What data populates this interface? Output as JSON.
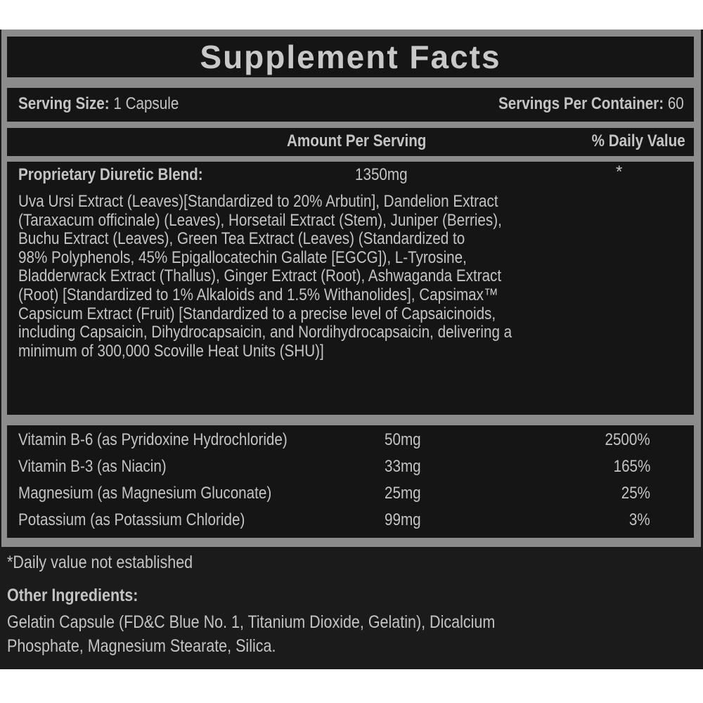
{
  "title": "Supplement Facts",
  "serving_size_label": "Serving Size:",
  "serving_size_value": "1 Capsule",
  "servings_per_container_label": "Servings Per Container:",
  "servings_per_container_value": "60",
  "header": {
    "amount": "Amount Per Serving",
    "dv": "% Daily Value"
  },
  "blend": {
    "name": "Proprietary Diuretic Blend:",
    "amount": "1350mg",
    "dv": "*",
    "lines": [
      "Uva Ursi Extract (Leaves)[Standardized to 20% Arbutin], Dandelion Extract",
      "(Taraxacum officinale) (Leaves), Horsetail Extract (Stem), Juniper (Berries),",
      "Buchu Extract (Leaves), Green Tea Extract (Leaves) (Standardized to",
      "98% Polyphenols, 45% Epigallocatechin Gallate [EGCG]), L-Tyrosine,",
      "Bladderwrack Extract (Thallus), Ginger Extract (Root), Ashwaganda Extract",
      "(Root) [Standardized to 1% Alkaloids and 1.5% Withanolides], Capsimax™",
      "Capsicum Extract (Fruit) [Standardized to a precise level of Capsaicinoids,",
      "including Capsaicin, Dihydrocapsaicin, and Nordihydrocapsaicin, delivering a",
      "minimum of 300,000 Scoville Heat Units (SHU)]"
    ]
  },
  "nutrients": [
    {
      "name": "Vitamin B-6 (as Pyridoxine Hydrochloride)",
      "amount": "50mg",
      "dv": "2500%"
    },
    {
      "name": "Vitamin B-3 (as Niacin)",
      "amount": "33mg",
      "dv": "165%"
    },
    {
      "name": "Magnesium (as Magnesium Gluconate)",
      "amount": "25mg",
      "dv": "25%"
    },
    {
      "name": "Potassium (as Potassium Chloride)",
      "amount": "99mg",
      "dv": "3%"
    }
  ],
  "footnote": "*Daily value not established",
  "other_ingredients": {
    "label": "Other Ingredients:",
    "lines": [
      "Gelatin Capsule (FD&C Blue No. 1, Titanium Dioxide, Gelatin), Dicalcium",
      "Phosphate, Magnesium Stearate, Silica."
    ]
  },
  "colors": {
    "background": "#151515",
    "border": "#8c8c8c",
    "text": "#c4c4c4"
  }
}
